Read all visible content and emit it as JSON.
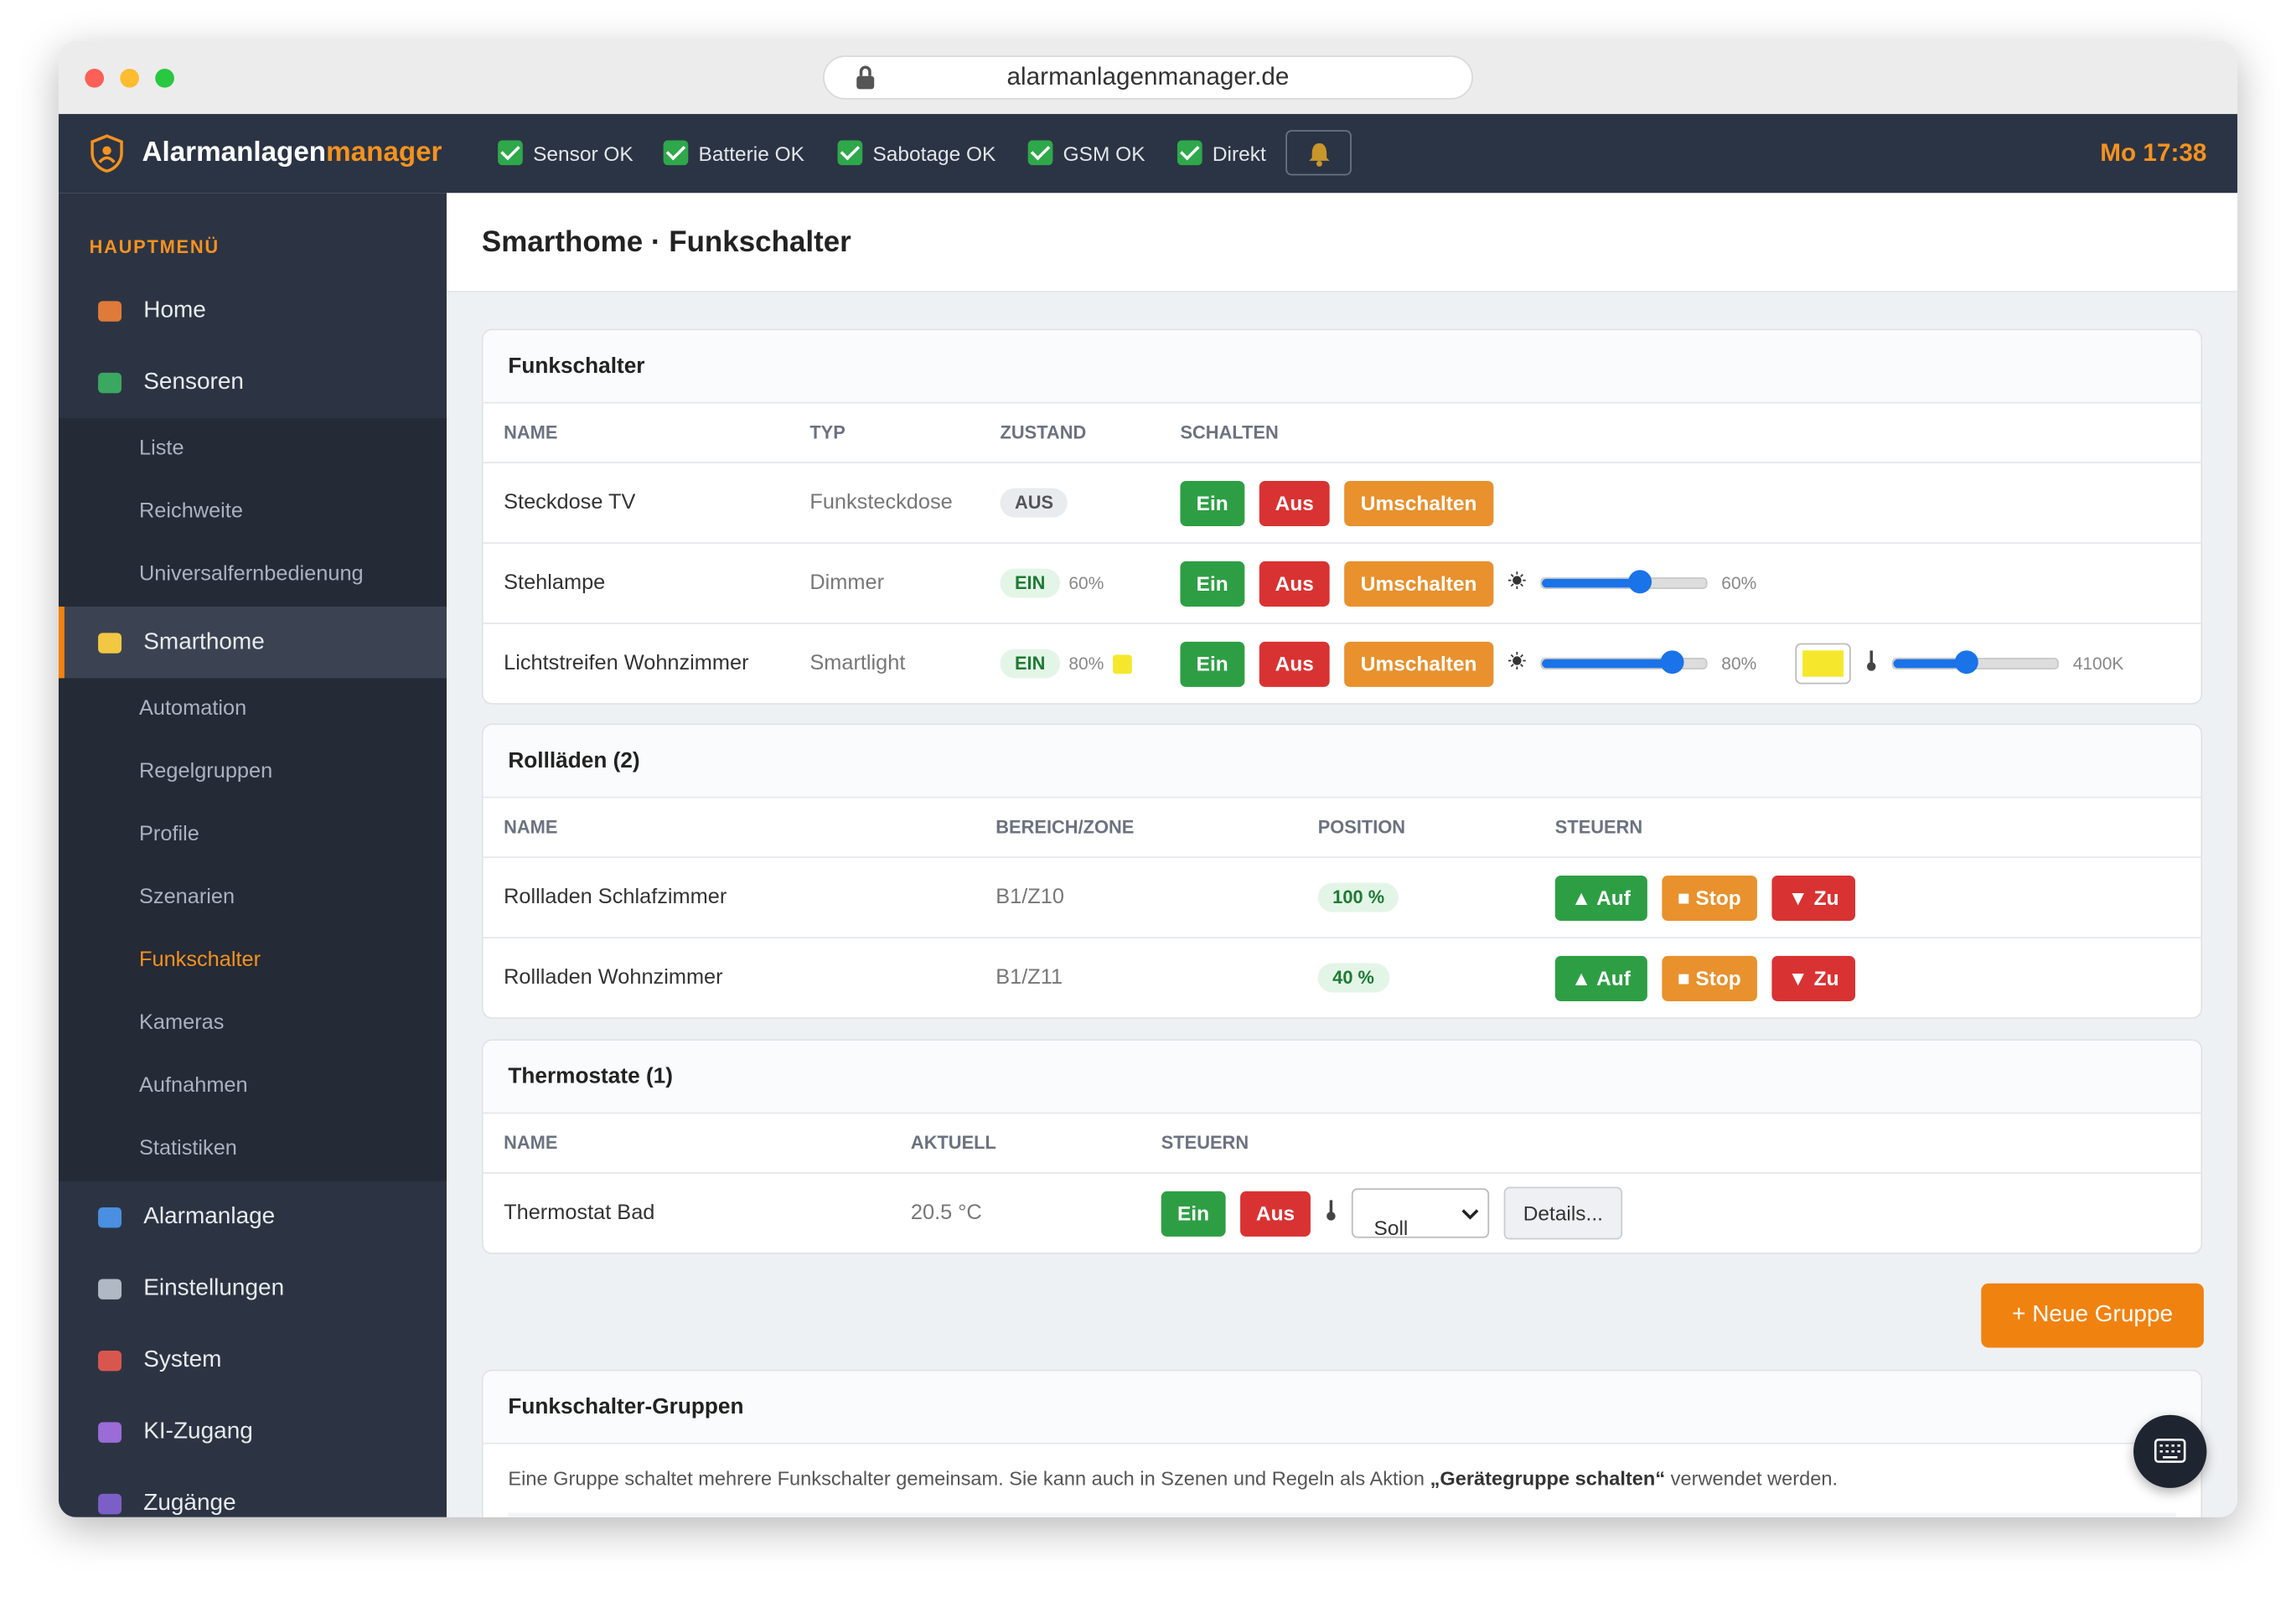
{
  "browser": {
    "url": "alarmanlagenmanager.de"
  },
  "header": {
    "brand_main": "Alarmanlagen",
    "brand_accent": "manager",
    "status": [
      "Sensor OK",
      "Batterie OK",
      "Sabotage OK",
      "GSM OK",
      "Direkt"
    ],
    "clock": "Mo 17:38"
  },
  "sidebar": {
    "heading": "HAUPTMENÜ",
    "items": [
      {
        "label": "Home"
      },
      {
        "label": "Sensoren",
        "children": [
          "Liste",
          "Reichweite",
          "Universalfernbedienung"
        ]
      },
      {
        "label": "Smarthome",
        "active": true,
        "children": [
          "Automation",
          "Regelgruppen",
          "Profile",
          "Szenarien",
          "Funkschalter",
          "Kameras",
          "Aufnahmen",
          "Statistiken"
        ],
        "current_child": 4
      },
      {
        "label": "Alarmanlage"
      },
      {
        "label": "Einstellungen"
      },
      {
        "label": "System"
      },
      {
        "label": "KI-Zugang"
      },
      {
        "label": "Zugänge"
      }
    ]
  },
  "page_title": "Smarthome · Funkschalter",
  "switches": {
    "title": "Funkschalter",
    "columns": [
      "NAME",
      "TYP",
      "ZUSTAND",
      "SCHALTEN"
    ],
    "rows": [
      {
        "name": "Steckdose TV",
        "type": "Funksteckdose",
        "state": "AUS",
        "actions": [
          "Ein",
          "Aus",
          "Umschalten"
        ]
      },
      {
        "name": "Stehlampe",
        "type": "Dimmer",
        "state": "EIN",
        "level": 60,
        "level_label": "60%",
        "actions": [
          "Ein",
          "Aus",
          "Umschalten"
        ]
      },
      {
        "name": "Lichtstreifen Wohnzimmer",
        "type": "Smartlight",
        "state": "EIN",
        "level": 80,
        "level_label": "80%",
        "color": "#f5e82c",
        "color_temp": 4100,
        "color_temp_label": "4100K",
        "actions": [
          "Ein",
          "Aus",
          "Umschalten"
        ]
      }
    ]
  },
  "shutters": {
    "title": "Rollläden (2)",
    "columns": [
      "NAME",
      "BEREICH/ZONE",
      "POSITION",
      "STEUERN"
    ],
    "rows": [
      {
        "name": "Rollladen Schlafzimmer",
        "zone": "B1/Z10",
        "position": "100 %",
        "actions": [
          "▲ Auf",
          "■ Stop",
          "▼ Zu"
        ]
      },
      {
        "name": "Rollladen Wohnzimmer",
        "zone": "B1/Z11",
        "position": "40 %",
        "actions": [
          "▲ Auf",
          "■ Stop",
          "▼ Zu"
        ]
      }
    ]
  },
  "thermostats": {
    "title": "Thermostate (1)",
    "columns": [
      "NAME",
      "AKTUELL",
      "STEUERN"
    ],
    "rows": [
      {
        "name": "Thermostat Bad",
        "current": "20.5 °C",
        "actions": [
          "Ein",
          "Aus"
        ],
        "select": "Soll",
        "details": "Details..."
      }
    ]
  },
  "new_group_button": "+ Neue Gruppe",
  "groups": {
    "title": "Funkschalter-Gruppen",
    "description": [
      "Eine Gruppe schaltet mehrere Funkschalter gemeinsam. Sie kann auch in Szenen und Regeln als Aktion ",
      "„Gerätegruppe schalten“",
      " verwendet werden."
    ]
  }
}
